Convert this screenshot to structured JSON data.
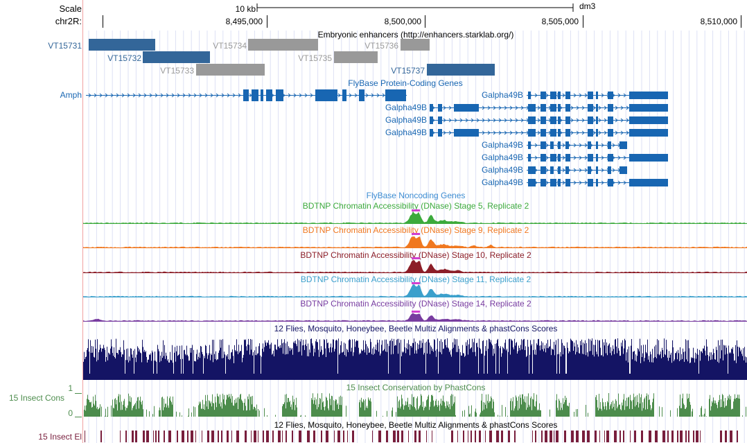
{
  "header": {
    "scale_label": "Scale",
    "scale_bar_label": "10 kb",
    "assembly": "dm3",
    "chrom_label": "chr2R:",
    "positions": [
      "8,495,000",
      "8,500,000",
      "8,505,000",
      "8,510,000"
    ]
  },
  "colors": {
    "enhancer_blue": "#336699",
    "enhancer_gray": "#999999",
    "gene_blue": "#1866b2",
    "stage5": "#3caa3c",
    "stage9": "#f07820",
    "stage10": "#8c1e28",
    "stage11": "#3ca0cc",
    "stage14": "#783ca0",
    "multiz": "#141464",
    "phastcons": "#4c8c4c",
    "elements": "#781e3c",
    "peak_marker": "#d040d0"
  },
  "tracks": {
    "enhancers": {
      "title": "Embryonic enhancers (http://enhancers.starklab.org/)",
      "items": [
        {
          "label": "VT15731"
        },
        {
          "label": "VT15732"
        },
        {
          "label": "VT15733"
        },
        {
          "label": "VT15734"
        },
        {
          "label": "VT15735"
        },
        {
          "label": "VT15736"
        },
        {
          "label": "VT15737"
        }
      ]
    },
    "genes": {
      "title": "FlyBase Protein-Coding Genes",
      "items": [
        {
          "label": "Amph"
        },
        {
          "label": "Galpha49B"
        },
        {
          "label": "Galpha49B"
        },
        {
          "label": "Galpha49B"
        },
        {
          "label": "Galpha49B"
        },
        {
          "label": "Galpha49B"
        },
        {
          "label": "Galpha49B"
        },
        {
          "label": "Galpha49B"
        },
        {
          "label": "Galpha49B"
        }
      ]
    },
    "noncoding": {
      "title": "FlyBase Noncoding Genes"
    },
    "dnase": [
      {
        "title": "BDTNP Chromatin Accessibility (DNase) Stage 5, Replicate 2"
      },
      {
        "title": "BDTNP Chromatin Accessibility (DNase) Stage 9, Replicate 2"
      },
      {
        "title": "BDTNP Chromatin Accessibility (DNase) Stage 10, Replicate 2"
      },
      {
        "title": "BDTNP Chromatin Accessibility (DNase) Stage 11, Replicate 2"
      },
      {
        "title": "BDTNP Chromatin Accessibility (DNase) Stage 14, Replicate 2"
      }
    ],
    "multiz": {
      "title": "12 Flies, Mosquito, Honeybee, Beetle Multiz Alignments & phastCons Scores"
    },
    "phastcons": {
      "title": "15 Insect Conservation by PhastCons",
      "side_label": "15 Insect Cons",
      "y_max": "1",
      "y_min": "0"
    },
    "elements": {
      "title": "12 Flies, Mosquito, Honeybee, Beetle Multiz Alignments & phastCons Scores",
      "side_label": "15 Insect El"
    }
  }
}
